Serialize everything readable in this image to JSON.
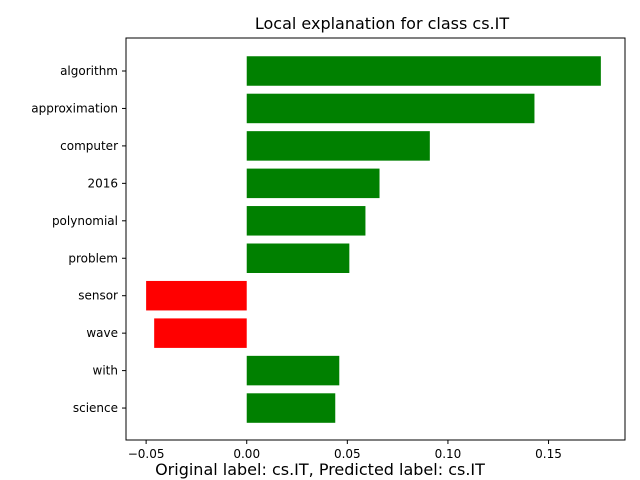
{
  "chart_data": {
    "type": "bar",
    "orientation": "horizontal",
    "title": "Local explanation for class cs.IT",
    "xlabel": "",
    "ylabel": "",
    "categories": [
      "algorithm",
      "approximation",
      "computer",
      "2016",
      "polynomial",
      "problem",
      "sensor",
      "wave",
      "with",
      "science"
    ],
    "values": [
      0.176,
      0.143,
      0.091,
      0.066,
      0.059,
      0.051,
      -0.05,
      -0.046,
      0.046,
      0.044
    ],
    "xlim": [
      -0.06,
      0.188
    ],
    "xticks": [
      "−0.05",
      "0.00",
      "0.05",
      "0.10",
      "0.15"
    ],
    "xtick_values": [
      -0.05,
      0.0,
      0.05,
      0.1,
      0.15
    ],
    "positive_color": "#008000",
    "negative_color": "#ff0000",
    "grid": false
  },
  "footer": {
    "text": "Original label: cs.IT, Predicted label: cs.IT"
  }
}
